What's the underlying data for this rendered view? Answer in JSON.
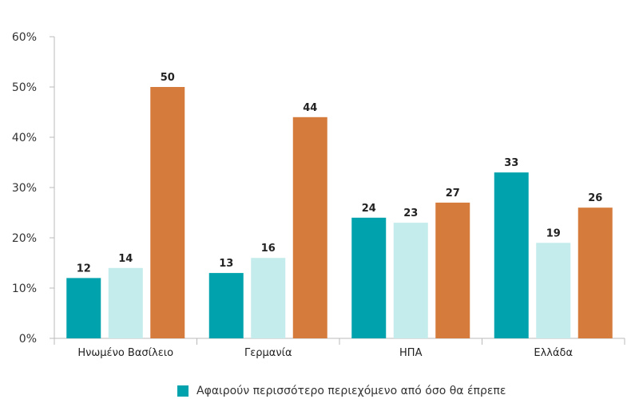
{
  "chart_data": {
    "type": "bar",
    "title": "",
    "xlabel": "",
    "ylabel": "",
    "categories": [
      "Ηνωμένο Βασίλειο",
      "Γερμανία",
      "ΗΠΑ",
      "Ελλάδα"
    ],
    "series": [
      {
        "name": "Αφαιρούν περισσότερο περιεχόμενο από όσο θα έπρεπε",
        "color": "#00a3ad",
        "values": [
          12,
          13,
          24,
          33
        ]
      },
      {
        "name": "",
        "color": "#c4ecec",
        "values": [
          14,
          16,
          23,
          19
        ]
      },
      {
        "name": "",
        "color": "#d57c3c",
        "values": [
          50,
          44,
          27,
          26
        ]
      }
    ],
    "ylim": [
      0,
      60
    ],
    "yticks": [
      0,
      10,
      20,
      30,
      40,
      50,
      60
    ],
    "ytick_labels": [
      "0%",
      "10%",
      "20%",
      "30%",
      "40%",
      "50%",
      "60%"
    ],
    "grid": false,
    "legend_position": "bottom"
  }
}
